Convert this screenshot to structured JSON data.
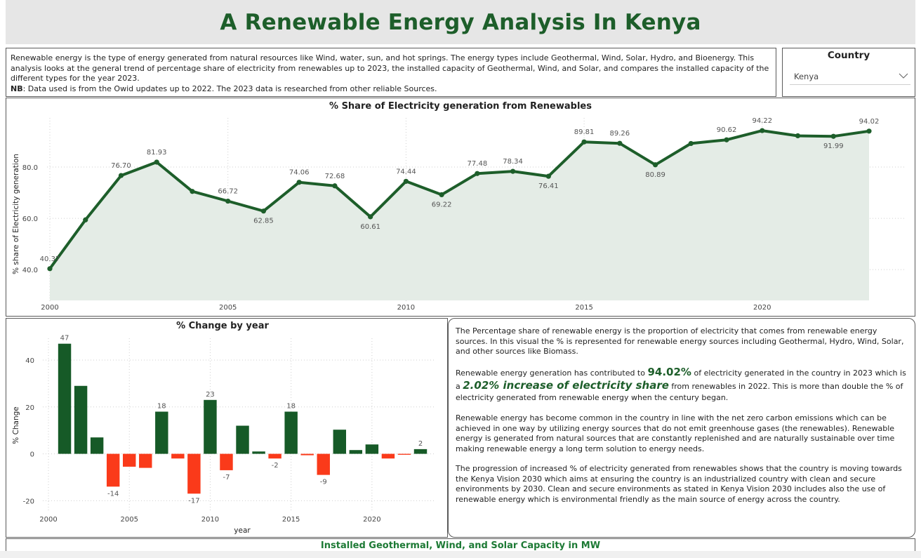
{
  "title": "A Renewable Energy Analysis In Kenya",
  "intro": {
    "text": "Renewable energy is the type of energy generated from natural resources like Wind, water, sun, and hot springs. The energy types include Geothermal, Wind, Solar, Hydro, and Bioenergy. This analysis looks at the general trend of percentage share of electricity from renewables up to 2023, the installed capacity of Geothermal, Wind, and Solar, and compares the installed capacity of the different types for the year 2023.",
    "nb_label": "NB",
    "nb_text": ": Data used is from the Owid updates up to 2022. The 2023 data is researched from other reliable Sources."
  },
  "country_filter": {
    "title": "Country",
    "selected": "Kenya",
    "icon": "chevron-down-icon"
  },
  "chart_data": [
    {
      "type": "line",
      "title": "% Share of Electricity generation from Renewables",
      "xlabel": "",
      "ylabel": "% share of Electricity generation",
      "x": [
        2000,
        2001,
        2002,
        2003,
        2004,
        2005,
        2006,
        2007,
        2008,
        2009,
        2010,
        2011,
        2012,
        2013,
        2014,
        2015,
        2016,
        2017,
        2018,
        2019,
        2020,
        2021,
        2022,
        2023
      ],
      "values": [
        40.37,
        59.4,
        76.7,
        81.93,
        70.5,
        66.72,
        62.85,
        74.06,
        72.68,
        60.61,
        74.44,
        69.22,
        77.48,
        78.34,
        76.41,
        89.81,
        89.26,
        80.89,
        89.2,
        90.62,
        94.22,
        92.2,
        91.99,
        94.02
      ],
      "data_labels": [
        "40.37",
        "",
        "76.70",
        "81.93",
        "",
        "66.72",
        "62.85",
        "74.06",
        "72.68",
        "60.61",
        "74.44",
        "69.22",
        "77.48",
        "78.34",
        "76.41",
        "89.81",
        "89.26",
        "80.89",
        "",
        "90.62",
        "94.22",
        "",
        "91.99",
        "94.02"
      ],
      "x_ticks": [
        "2000",
        "2005",
        "2010",
        "2015",
        "2020"
      ],
      "y_ticks": [
        "40.0",
        "60.0",
        "80.0"
      ],
      "ylim": [
        28,
        103
      ],
      "xlim": [
        2000,
        2023
      ],
      "grid": true,
      "color": "#1d5e2a",
      "area_color": "#e4ece6"
    },
    {
      "type": "bar",
      "title": "% Change by year",
      "xlabel": "year",
      "ylabel": "% Change",
      "x": [
        2001,
        2002,
        2003,
        2004,
        2005,
        2006,
        2007,
        2008,
        2009,
        2010,
        2011,
        2012,
        2013,
        2014,
        2015,
        2016,
        2017,
        2018,
        2019,
        2020,
        2021,
        2022,
        2023
      ],
      "values": [
        47,
        29,
        7,
        -14,
        -5.5,
        -6,
        18,
        -2,
        -17,
        23,
        -7,
        12,
        1,
        -2,
        18,
        -0.6,
        -9,
        10.3,
        1.6,
        4,
        -2,
        -0.4,
        2
      ],
      "data_labels": [
        "47",
        "",
        "",
        "-14",
        "",
        "",
        "18",
        "",
        "-17",
        "23",
        "-7",
        "",
        "",
        "-2",
        "18",
        "",
        "-9",
        "",
        "",
        "",
        "",
        "",
        "2"
      ],
      "x_ticks": [
        "2000",
        "2005",
        "2010",
        "2015",
        "2020"
      ],
      "y_ticks": [
        "-20",
        "0",
        "20",
        "40"
      ],
      "ylim": [
        -22,
        52
      ],
      "xlim": [
        2000,
        2023
      ],
      "grid": true,
      "positive_color": "#165a27",
      "negative_color": "#fa3a1a"
    }
  ],
  "narrative": {
    "p1": "The Percentage share of renewable energy is the proportion of electricity that comes from renewable energy sources. In this visual the % is represented for renewable energy sources including Geothermal, Hydro, Wind, Solar, and other sources like Biomass.",
    "p2_a": "Renewable energy generation has contributed to ",
    "p2_value": "94.02%",
    "p2_b": " of electricity generated in the country in 2023 which is a ",
    "p2_change": "2.02% increase of electricity share",
    "p2_c": " from renewables in 2022. This is more than double the % of electricity generated from renewable energy when the century began.",
    "p3": "Renewable energy has become common in the country in line with the net zero carbon emissions which can be achieved in one way by utilizing energy sources that do not emit greenhouse gases (the renewables). Renewable energy is generated from natural sources that are constantly replenished and are naturally sustainable over time making renewable energy a long term solution to energy needs.",
    "p4": "The progression of increased % of electricity generated from renewables shows that the country is moving towards the Kenya Vision 2030 which aims at ensuring the country is an industrialized country with clean and secure environments by 2030. Clean and secure environments as stated in Kenya Vision 2030 includes also the use of renewable energy which is environmental friendly as the main source of energy across the country."
  },
  "bottom_section": {
    "title": "Installed Geothermal, Wind, and Solar Capacity in MW"
  }
}
